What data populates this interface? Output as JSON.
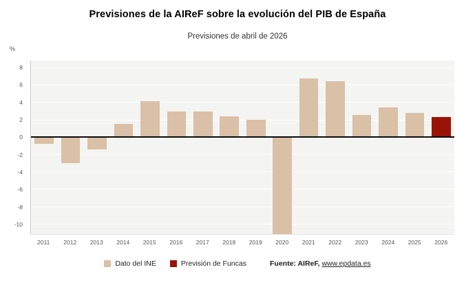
{
  "title": "Previsiones de la AIReF sobre la evolución del PIB de España",
  "subtitle": "Previsiones de abril de 2026",
  "y_axis_unit": "%",
  "legend": {
    "ine_label": "Dato del INE",
    "funcas_label": "Previsión de Funcas"
  },
  "source": {
    "bold_text": "Fuente: AIReF, ",
    "link": "www.epdata.es"
  },
  "colors": {
    "ine_bar": "#d9c0a7",
    "funcas_bar": "#991407",
    "plot_bg": "#f4f4f2",
    "grid": "#ffffff",
    "zero_line": "#0a0a0a",
    "tick_text": "#555555"
  },
  "chart_data": {
    "type": "bar",
    "title": "Previsiones de la AIReF sobre la evolución del PIB de España",
    "subtitle": "Previsiones de abril de 2026",
    "xlabel": "",
    "ylabel": "%",
    "categories": [
      "2011",
      "2012",
      "2013",
      "2014",
      "2015",
      "2016",
      "2017",
      "2018",
      "2019",
      "2020",
      "2021",
      "2022",
      "2023",
      "2024",
      "2025",
      "2026"
    ],
    "values": [
      -0.8,
      -3.0,
      -1.4,
      1.5,
      4.1,
      2.9,
      2.9,
      2.4,
      2.0,
      -11.2,
      6.7,
      6.4,
      2.5,
      3.4,
      2.8,
      2.3
    ],
    "bar_series": [
      "ine",
      "ine",
      "ine",
      "ine",
      "ine",
      "ine",
      "ine",
      "ine",
      "ine",
      "ine",
      "ine",
      "ine",
      "ine",
      "ine",
      "ine",
      "funcas"
    ],
    "series": [
      {
        "name": "Dato del INE",
        "color": "#d9c0a7"
      },
      {
        "name": "Previsión de Funcas",
        "color": "#991407"
      }
    ],
    "ylim": [
      -11.2,
      8.8
    ],
    "yticks": [
      8,
      6,
      4,
      2,
      0,
      -2,
      -4,
      -6,
      -8,
      -10
    ],
    "grid": true,
    "legend_position": "bottom"
  }
}
